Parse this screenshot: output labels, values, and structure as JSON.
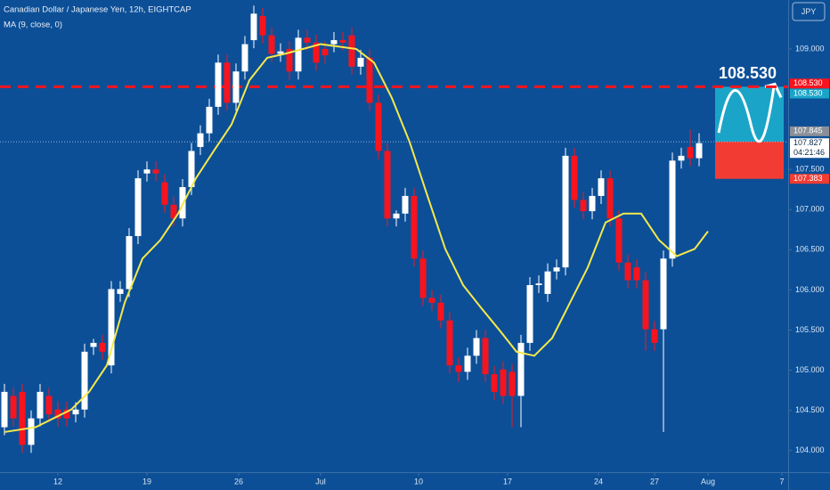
{
  "chart_data": {
    "type": "candlestick",
    "title": "Canadian Dollar / Japanese Yen, 12h, EIGHTCAP",
    "indicator": "MA (9, close, 0)",
    "currency": "JPY",
    "background": "#0c4f97",
    "up_color": "#ffffff",
    "down_color": "#f7141e",
    "xlim": [
      -0.5,
      88
    ],
    "ylim": [
      103.73,
      109.61
    ],
    "xticks": [
      {
        "value": 6,
        "label": "12"
      },
      {
        "value": 16,
        "label": "19"
      },
      {
        "value": 26.3,
        "label": "26"
      },
      {
        "value": 35.5,
        "label": "Jul"
      },
      {
        "value": 46.5,
        "label": "10"
      },
      {
        "value": 56.5,
        "label": "17"
      },
      {
        "value": 66.7,
        "label": "24"
      },
      {
        "value": 73,
        "label": "27"
      },
      {
        "value": 79,
        "label": "Aug"
      },
      {
        "value": 87.3,
        "label": "7"
      }
    ],
    "yticks": [
      {
        "value": 109,
        "label": "109.000"
      },
      {
        "value": 107.5,
        "label": "107.500"
      },
      {
        "value": 107,
        "label": "107.000"
      },
      {
        "value": 106.5,
        "label": "106.500"
      },
      {
        "value": 106,
        "label": "106.000"
      },
      {
        "value": 105.5,
        "label": "105.500"
      },
      {
        "value": 105,
        "label": "105.000"
      },
      {
        "value": 104.5,
        "label": "104.500"
      },
      {
        "value": 104,
        "label": "104.000"
      }
    ],
    "open": [
      104.29,
      104.68,
      104.73,
      104.07,
      104.4,
      104.68,
      104.51,
      104.51,
      104.45,
      104.51,
      105.29,
      105.34,
      105.06,
      105.95,
      106.01,
      106.67,
      107.45,
      107.5,
      107.34,
      107.06,
      106.89,
      107.28,
      107.78,
      107.95,
      108.28,
      108.83,
      108.33,
      108.72,
      109.11,
      109.41,
      109.17,
      108.94,
      109.0,
      108.72,
      109.14,
      109.08,
      109.0,
      109.06,
      109.11,
      109.17,
      108.78,
      108.89,
      108.33,
      107.73,
      106.89,
      106.95,
      107.17,
      106.39,
      105.9,
      105.84,
      105.62,
      105.06,
      104.98,
      105.18,
      105.4,
      104.95,
      105.01,
      104.98,
      104.68,
      105.34,
      106.06,
      105.95,
      106.23,
      106.28,
      107.67,
      107.12,
      106.98,
      107.17,
      107.39,
      106.89,
      106.34,
      106.28,
      106.12,
      105.51,
      105.51,
      106.39,
      107.61,
      107.78,
      107.64
    ],
    "high": [
      104.83,
      104.78,
      104.83,
      104.5,
      104.83,
      104.78,
      104.61,
      104.61,
      104.6,
      105.33,
      105.39,
      105.44,
      106.11,
      106.11,
      106.77,
      107.49,
      107.6,
      107.6,
      107.44,
      107.16,
      107.38,
      107.83,
      108.05,
      108.38,
      108.93,
      108.93,
      108.82,
      109.16,
      109.54,
      109.51,
      109.27,
      109.07,
      109.1,
      109.24,
      109.24,
      109.18,
      109.1,
      109.21,
      109.21,
      109.27,
      108.99,
      108.99,
      108.43,
      107.83,
      106.99,
      107.27,
      107.27,
      106.49,
      106.0,
      105.94,
      105.72,
      105.16,
      105.28,
      105.5,
      105.5,
      105.05,
      105.11,
      105.08,
      105.44,
      106.16,
      106.18,
      106.33,
      106.38,
      107.77,
      107.77,
      107.22,
      107.27,
      107.49,
      107.49,
      106.99,
      106.44,
      106.38,
      106.22,
      105.61,
      106.49,
      107.71,
      107.77,
      108.0,
      107.95
    ],
    "low": [
      104.19,
      104.3,
      103.97,
      103.97,
      104.3,
      104.35,
      104.3,
      104.3,
      104.35,
      104.41,
      105.19,
      105.13,
      104.96,
      105.85,
      105.91,
      106.57,
      107.35,
      107.35,
      106.96,
      106.79,
      106.79,
      107.18,
      107.68,
      107.85,
      108.18,
      108.23,
      108.23,
      108.62,
      109.01,
      109.07,
      108.84,
      108.84,
      108.62,
      108.62,
      108.98,
      108.73,
      108.82,
      108.96,
      108.98,
      108.68,
      108.68,
      108.23,
      107.63,
      106.79,
      106.79,
      106.85,
      106.29,
      105.8,
      105.74,
      105.52,
      104.96,
      104.85,
      104.88,
      105.08,
      104.85,
      104.63,
      104.58,
      104.29,
      104.29,
      105.24,
      105.96,
      105.85,
      106.13,
      106.18,
      107.02,
      106.88,
      106.88,
      107.07,
      106.79,
      106.24,
      106.02,
      106.02,
      105.24,
      105.24,
      104.23,
      106.29,
      107.51,
      107.54,
      107.54
    ],
    "close": [
      104.73,
      104.4,
      104.07,
      104.4,
      104.73,
      104.45,
      104.4,
      104.4,
      104.51,
      105.23,
      105.34,
      105.23,
      106.01,
      106.01,
      106.67,
      107.39,
      107.5,
      107.45,
      107.06,
      106.89,
      107.28,
      107.73,
      107.95,
      108.28,
      108.83,
      108.33,
      108.72,
      109.06,
      109.44,
      109.17,
      108.94,
      108.97,
      108.72,
      109.14,
      109.08,
      108.83,
      108.92,
      109.11,
      109.08,
      108.78,
      108.89,
      108.33,
      107.73,
      106.89,
      106.95,
      107.17,
      106.39,
      105.9,
      105.84,
      105.62,
      105.06,
      104.98,
      105.18,
      105.4,
      104.95,
      104.73,
      104.68,
      104.68,
      105.34,
      106.06,
      106.08,
      106.23,
      106.28,
      107.67,
      107.12,
      106.98,
      107.17,
      107.39,
      106.89,
      106.34,
      106.12,
      106.12,
      105.51,
      105.34,
      106.39,
      107.61,
      107.67,
      107.64,
      107.827
    ],
    "ma": {
      "name": "MA (9, close, 0)",
      "color": "#f5e94b",
      "x": [
        0,
        3.5,
        7.5,
        9.5,
        11.5,
        13.5,
        15.5,
        17.5,
        19.5,
        21.5,
        23.5,
        25.5,
        27.5,
        29.5,
        31.5,
        33.5,
        35.5,
        37.5,
        39.5,
        41.5,
        43.5,
        45.5,
        47.5,
        49.5,
        51.5,
        53.5,
        55.5,
        57.5,
        59.5,
        61.5,
        63.5,
        65.5,
        67.5,
        69.5,
        71.5,
        73.5,
        75.5,
        77.5,
        79
      ],
      "values": [
        104.23,
        104.29,
        104.51,
        104.73,
        105.06,
        105.84,
        106.39,
        106.62,
        106.95,
        107.39,
        107.73,
        108.06,
        108.61,
        108.89,
        108.94,
        109.0,
        109.06,
        109.03,
        109.0,
        108.83,
        108.39,
        107.84,
        107.17,
        106.51,
        106.06,
        105.78,
        105.51,
        105.23,
        105.18,
        105.4,
        105.84,
        106.28,
        106.84,
        106.95,
        106.95,
        106.62,
        106.42,
        106.51,
        106.73
      ]
    },
    "level_line": {
      "value": 108.53,
      "label": "108.530",
      "color": "#f7141e"
    },
    "position": {
      "target": {
        "value": 108.53,
        "label": "108.530",
        "color": "#1aa5c8"
      },
      "entry": {
        "value": 107.845,
        "label": "107.845",
        "color": "#8a8f99"
      },
      "stop": {
        "value": 107.383,
        "label": "107.383",
        "color": "#f23c33"
      },
      "start": 79.8,
      "end": 87.5
    },
    "last_price": {
      "value": 107.827,
      "label": "107.827",
      "countdown": "04:21:46"
    }
  }
}
